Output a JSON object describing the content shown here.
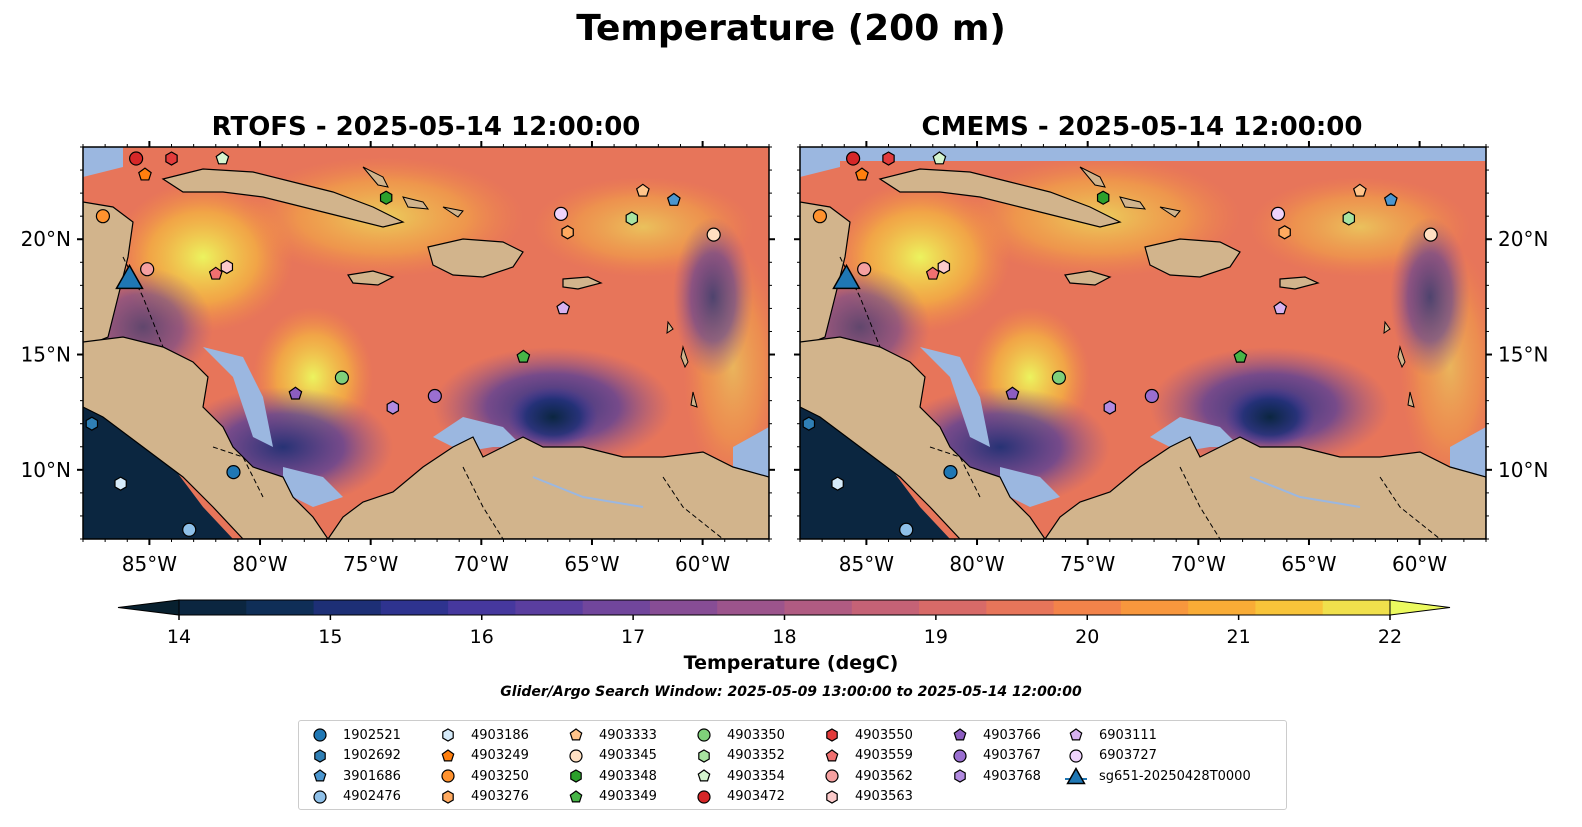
{
  "title": "Temperature (200 m)",
  "panels": [
    {
      "title": "RTOFS - 2025-05-14 12:00:00"
    },
    {
      "title": "CMEMS - 2025-05-14 12:00:00"
    }
  ],
  "map": {
    "lon_range": [
      -88,
      -57
    ],
    "lat_range": [
      7,
      24
    ],
    "lon_ticks": [
      "85°W",
      "80°W",
      "75°W",
      "70°W",
      "65°W",
      "60°W"
    ],
    "lon_tick_values": [
      -85,
      -80,
      -75,
      -70,
      -65,
      -60
    ],
    "lat_ticks": [
      "10°N",
      "15°N",
      "20°N"
    ],
    "lat_tick_values": [
      10,
      15,
      20
    ],
    "land_color": "#d2b48c",
    "shelf_color": "#9bb7e0"
  },
  "colorbar": {
    "label": "Temperature (degC)",
    "min": 14,
    "max": 22,
    "tick_labels": [
      "14",
      "15",
      "16",
      "17",
      "18",
      "19",
      "20",
      "21",
      "22"
    ],
    "colors": [
      "#0b2640",
      "#0f2e57",
      "#1d2f76",
      "#2e338f",
      "#46389e",
      "#5a3e9f",
      "#71469c",
      "#874d95",
      "#9c548c",
      "#b05b82",
      "#c56276",
      "#d86a68",
      "#e7755a",
      "#f3834a",
      "#f8973d",
      "#f9ac36",
      "#f8c43a",
      "#f0e04c"
    ],
    "extend_low_color": "#08202f",
    "extend_high_color": "#ecfa5f"
  },
  "search_window": "Glider/Argo Search Window: 2025-05-09 13:00:00 to 2025-05-14 12:00:00",
  "legend": {
    "columns": [
      [
        {
          "label": "1902521",
          "marker": "circle",
          "color": "#1f77b4"
        },
        {
          "label": "1902692",
          "marker": "hexagon",
          "color": "#2f7fb5"
        },
        {
          "label": "3901686",
          "marker": "pentagon",
          "color": "#4b96cf"
        },
        {
          "label": "4902476",
          "marker": "circle",
          "color": "#8fc0e8"
        }
      ],
      [
        {
          "label": "4903186",
          "marker": "hexagon",
          "color": "#d6ebfa"
        },
        {
          "label": "4903249",
          "marker": "pentagon",
          "color": "#ff7f0e"
        },
        {
          "label": "4903250",
          "marker": "circle",
          "color": "#ff922e"
        },
        {
          "label": "4903276",
          "marker": "hexagon",
          "color": "#ffaa60"
        }
      ],
      [
        {
          "label": "4903333",
          "marker": "pentagon",
          "color": "#ffc48a"
        },
        {
          "label": "4903345",
          "marker": "circle",
          "color": "#ffe0c2"
        },
        {
          "label": "4903348",
          "marker": "hexagon",
          "color": "#2ca02c"
        },
        {
          "label": "4903349",
          "marker": "pentagon",
          "color": "#47b547"
        }
      ],
      [
        {
          "label": "4903350",
          "marker": "circle",
          "color": "#7fd07a"
        },
        {
          "label": "4903352",
          "marker": "hexagon",
          "color": "#a8e3a0"
        },
        {
          "label": "4903354",
          "marker": "pentagon",
          "color": "#d6f5cf"
        },
        {
          "label": "4903472",
          "marker": "circle",
          "color": "#d62728"
        }
      ],
      [
        {
          "label": "4903550",
          "marker": "hexagon",
          "color": "#e23b3b"
        },
        {
          "label": "4903559",
          "marker": "pentagon",
          "color": "#f07070"
        },
        {
          "label": "4903562",
          "marker": "circle",
          "color": "#f5a0a0"
        },
        {
          "label": "4903563",
          "marker": "hexagon",
          "color": "#fbcaca"
        }
      ],
      [
        {
          "label": "4903766",
          "marker": "pentagon",
          "color": "#8c5dc0"
        },
        {
          "label": "4903767",
          "marker": "circle",
          "color": "#9a6fd0"
        },
        {
          "label": "4903768",
          "marker": "hexagon",
          "color": "#b28be0"
        }
      ],
      [
        {
          "label": "6903111",
          "marker": "pentagon",
          "color": "#d7b2f0"
        },
        {
          "label": "6903727",
          "marker": "circle",
          "color": "#efd3fb"
        },
        {
          "label": "sg651-20250428T0000",
          "marker": "triangle",
          "color": "#1f77b4"
        }
      ]
    ]
  },
  "floats": [
    {
      "id": "4903472",
      "lon": -85.6,
      "lat": 23.5
    },
    {
      "id": "4903550",
      "lon": -84.0,
      "lat": 23.5
    },
    {
      "id": "4903354",
      "lon": -81.7,
      "lat": 23.5
    },
    {
      "id": "4903249",
      "lon": -85.2,
      "lat": 22.8
    },
    {
      "id": "4903250",
      "lon": -87.1,
      "lat": 21.0
    },
    {
      "id": "4903348",
      "lon": -74.3,
      "lat": 21.8
    },
    {
      "id": "6903727",
      "lon": -66.4,
      "lat": 21.1
    },
    {
      "id": "4903276",
      "lon": -66.1,
      "lat": 20.3
    },
    {
      "id": "4903352",
      "lon": -63.2,
      "lat": 20.9
    },
    {
      "id": "4903333",
      "lon": -62.7,
      "lat": 22.1
    },
    {
      "id": "3901686",
      "lon": -61.3,
      "lat": 21.7
    },
    {
      "id": "4903345",
      "lon": -59.5,
      "lat": 20.2
    },
    {
      "id": "4903562",
      "lon": -85.1,
      "lat": 18.7
    },
    {
      "id": "4903559",
      "lon": -82.0,
      "lat": 18.5
    },
    {
      "id": "4903563",
      "lon": -81.5,
      "lat": 18.8
    },
    {
      "id": "6903111",
      "lon": -66.3,
      "lat": 17.0
    },
    {
      "id": "4903349",
      "lon": -68.1,
      "lat": 14.9
    },
    {
      "id": "4903350",
      "lon": -76.3,
      "lat": 14.0
    },
    {
      "id": "4903766",
      "lon": -78.4,
      "lat": 13.3
    },
    {
      "id": "4903768",
      "lon": -74.0,
      "lat": 12.7
    },
    {
      "id": "4903767",
      "lon": -72.1,
      "lat": 13.2
    },
    {
      "id": "1902521",
      "lon": -81.2,
      "lat": 9.9
    },
    {
      "id": "1902692",
      "lon": -87.6,
      "lat": 12.0
    },
    {
      "id": "4903186",
      "lon": -86.3,
      "lat": 9.4
    },
    {
      "id": "4902476",
      "lon": -83.2,
      "lat": 7.4
    }
  ],
  "glider": {
    "id": "sg651-20250428T0000",
    "lon": -85.9,
    "lat": 18.3
  }
}
